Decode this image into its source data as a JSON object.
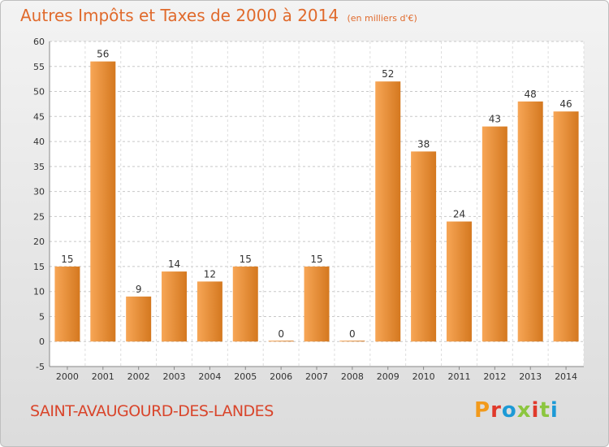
{
  "header": {
    "title": "Autres Impôts et Taxes de 2000 à 2014",
    "unit": "(en milliers d'€)"
  },
  "footer": {
    "city": "SAINT-AVAUGOURD-DES-LANDES",
    "brand": "Proxiti",
    "brand_colors": [
      "#f29a1c",
      "#e0392b",
      "#1d9ad6",
      "#8cc63f",
      "#e0392b",
      "#8cc63f",
      "#1d9ad6"
    ]
  },
  "colors": {
    "bar_light": "#f7a656",
    "bar_dark": "#d4781f",
    "accent": "#e06a2c"
  },
  "chart_data": {
    "type": "bar",
    "categories": [
      "2000",
      "2001",
      "2002",
      "2003",
      "2004",
      "2005",
      "2006",
      "2007",
      "2008",
      "2009",
      "2010",
      "2011",
      "2012",
      "2013",
      "2014"
    ],
    "values": [
      15,
      56,
      9,
      14,
      12,
      15,
      0,
      15,
      0,
      52,
      38,
      24,
      43,
      48,
      46
    ],
    "ylim": [
      -5,
      60
    ],
    "yticks": [
      -5,
      0,
      5,
      10,
      15,
      20,
      25,
      30,
      35,
      40,
      45,
      50,
      55,
      60
    ],
    "grid": true,
    "data_labels": true
  }
}
